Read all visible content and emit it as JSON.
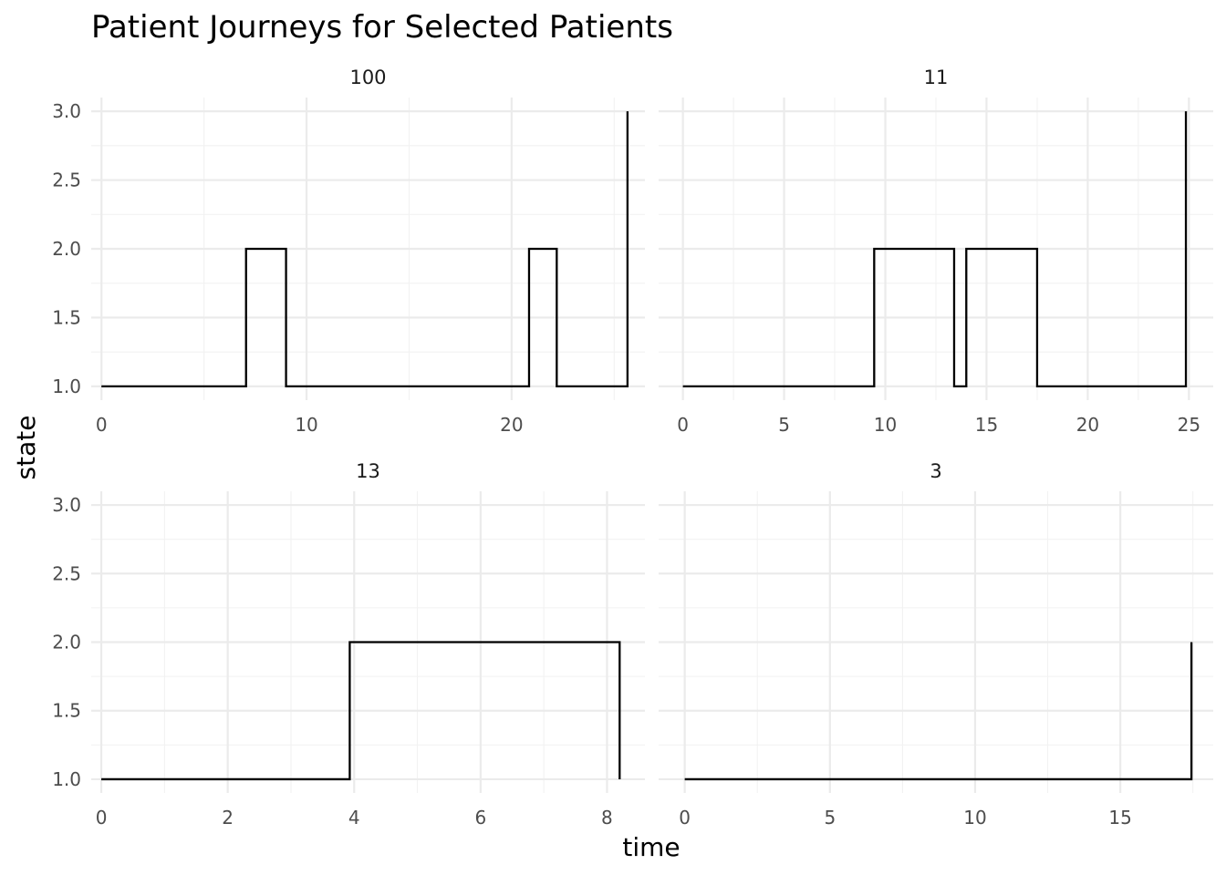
{
  "chart_data": {
    "type": "line",
    "title": "Patient Journeys for Selected Patients",
    "xlabel": "time",
    "ylabel": "state",
    "grid": true,
    "legend": "none",
    "panels": [
      {
        "label": "100",
        "xlim": [
          -0.5,
          26.5
        ],
        "ylim": [
          0.9,
          3.1
        ],
        "x_ticks": [
          0,
          10,
          20
        ],
        "x_tick_labels": [
          "0",
          "10",
          "20"
        ],
        "y_ticks": [
          1.0,
          1.5,
          2.0,
          2.5,
          3.0
        ],
        "y_tick_labels": [
          "1.0",
          "1.5",
          "2.0",
          "2.5",
          "3.0"
        ],
        "series": [
          {
            "step": "hv",
            "x": [
              0,
              7.05,
              9.0,
              20.85,
              22.2,
              25.65
            ],
            "y": [
              1,
              2,
              1,
              2,
              1,
              3
            ]
          }
        ]
      },
      {
        "label": "11",
        "xlim": [
          -1.2,
          26.2
        ],
        "ylim": [
          0.9,
          3.1
        ],
        "x_ticks": [
          0,
          5,
          10,
          15,
          20,
          25
        ],
        "x_tick_labels": [
          "0",
          "5",
          "10",
          "15",
          "20",
          "25"
        ],
        "y_ticks": [
          1.0,
          1.5,
          2.0,
          2.5,
          3.0
        ],
        "y_tick_labels": [
          "1.0",
          "1.5",
          "2.0",
          "2.5",
          "3.0"
        ],
        "series": [
          {
            "step": "hv",
            "x": [
              0,
              9.45,
              13.4,
              14.0,
              17.5,
              24.85
            ],
            "y": [
              1,
              2,
              1,
              2,
              1,
              3
            ]
          }
        ]
      },
      {
        "label": "13",
        "xlim": [
          -0.16,
          8.6
        ],
        "ylim": [
          0.9,
          3.1
        ],
        "x_ticks": [
          0,
          2,
          4,
          6,
          8
        ],
        "x_tick_labels": [
          "0",
          "2",
          "4",
          "6",
          "8"
        ],
        "y_ticks": [
          1.0,
          1.5,
          2.0,
          2.5,
          3.0
        ],
        "y_tick_labels": [
          "1.0",
          "1.5",
          "2.0",
          "2.5",
          "3.0"
        ],
        "series": [
          {
            "step": "hv",
            "x": [
              0,
              3.93,
              8.2
            ],
            "y": [
              1,
              2,
              1
            ]
          }
        ]
      },
      {
        "label": "3",
        "xlim": [
          -0.9,
          18.2
        ],
        "ylim": [
          0.9,
          3.1
        ],
        "x_ticks": [
          0,
          5,
          10,
          15
        ],
        "x_tick_labels": [
          "0",
          "5",
          "10",
          "15"
        ],
        "y_ticks": [
          1.0,
          1.5,
          2.0,
          2.5,
          3.0
        ],
        "y_tick_labels": [
          "1.0",
          "1.5",
          "2.0",
          "2.5",
          "3.0"
        ],
        "series": [
          {
            "step": "hv",
            "x": [
              0,
              17.45
            ],
            "y": [
              1,
              2
            ]
          }
        ]
      }
    ]
  }
}
